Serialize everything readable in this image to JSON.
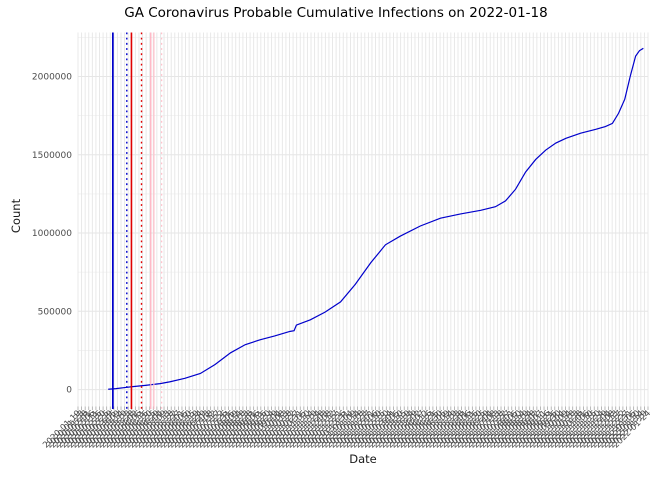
{
  "title": "GA Coronavirus Probable Cumulative Infections on 2022-01-18",
  "x_axis": {
    "label": "Date",
    "start": "2020-01-19",
    "end": "2022-01-24",
    "num_breaks": 160,
    "tick_label_format": "YYYY-MM-DD"
  },
  "y_axis": {
    "label": "Count",
    "tick_values": [
      0,
      500000,
      1000000,
      1500000,
      2000000
    ],
    "tick_labels": [
      "0",
      "500000",
      "1000000",
      "1500000",
      "2000000"
    ],
    "minor_values": [
      250000,
      750000,
      1250000,
      1750000,
      2250000
    ],
    "range": [
      -108000,
      2281000
    ]
  },
  "colors": {
    "background": "#ffffff",
    "grid_major": "#e6e6e6",
    "grid_minor": "#f2f2f2",
    "axis_tick": "#a6a6a6",
    "axis_text": "#4d4d4d",
    "axis_title": "#1a1a1a",
    "title_text": "#000000",
    "series_line": "#0000cc"
  },
  "chart_data": {
    "type": "line",
    "title": "GA Coronavirus Probable Cumulative Infections on 2022-01-18",
    "xlabel": "Date",
    "ylabel": "Count",
    "x_range": [
      "2020-01-19",
      "2022-01-24"
    ],
    "ylim": [
      -108000,
      2281000
    ],
    "grid": "on",
    "legend": "none",
    "series": [
      {
        "name": "probable-cumulative-infections",
        "color": "#0000cc",
        "points": [
          [
            "2020-02-27",
            2000
          ],
          [
            "2020-03-08",
            6000
          ],
          [
            "2020-03-28",
            18000
          ],
          [
            "2020-04-15",
            27000
          ],
          [
            "2020-05-04",
            38000
          ],
          [
            "2020-05-17",
            50000
          ],
          [
            "2020-06-05",
            72000
          ],
          [
            "2020-06-25",
            103000
          ],
          [
            "2020-07-14",
            160000
          ],
          [
            "2020-08-03",
            235000
          ],
          [
            "2020-08-22",
            287000
          ],
          [
            "2020-09-10",
            318000
          ],
          [
            "2020-09-29",
            343000
          ],
          [
            "2020-10-19",
            372000
          ],
          [
            "2020-10-24",
            376000
          ],
          [
            "2020-10-27",
            412000
          ],
          [
            "2020-11-14",
            446000
          ],
          [
            "2020-12-03",
            495000
          ],
          [
            "2020-12-23",
            560000
          ],
          [
            "2021-01-11",
            672000
          ],
          [
            "2021-01-31",
            810000
          ],
          [
            "2021-02-19",
            925000
          ],
          [
            "2021-03-10",
            980000
          ],
          [
            "2021-04-05",
            1045000
          ],
          [
            "2021-05-01",
            1095000
          ],
          [
            "2021-05-27",
            1122000
          ],
          [
            "2021-06-22",
            1145000
          ],
          [
            "2021-07-11",
            1168000
          ],
          [
            "2021-07-24",
            1205000
          ],
          [
            "2021-08-06",
            1280000
          ],
          [
            "2021-08-19",
            1390000
          ],
          [
            "2021-09-01",
            1470000
          ],
          [
            "2021-09-14",
            1530000
          ],
          [
            "2021-09-27",
            1575000
          ],
          [
            "2021-10-10",
            1605000
          ],
          [
            "2021-10-29",
            1638000
          ],
          [
            "2021-11-17",
            1662000
          ],
          [
            "2021-11-30",
            1680000
          ],
          [
            "2021-12-09",
            1700000
          ],
          [
            "2021-12-17",
            1765000
          ],
          [
            "2021-12-25",
            1855000
          ],
          [
            "2022-01-01",
            2000000
          ],
          [
            "2022-01-08",
            2130000
          ],
          [
            "2022-01-13",
            2165000
          ],
          [
            "2022-01-18",
            2180000
          ]
        ]
      }
    ],
    "vlines": [
      {
        "date": "2020-03-04",
        "color": "#0000cc",
        "style": "solid",
        "width": 1.7
      },
      {
        "date": "2020-03-22",
        "color": "#0000cc",
        "style": "dotted",
        "width": 1.4
      },
      {
        "date": "2020-03-28",
        "color": "#e00000",
        "style": "solid",
        "width": 1.6
      },
      {
        "date": "2020-04-10",
        "color": "#e00000",
        "style": "dotted",
        "width": 1.4
      },
      {
        "date": "2020-04-22",
        "color": "#ffaabb",
        "style": "solid",
        "width": 1.2
      },
      {
        "date": "2020-04-26",
        "color": "#ffc0cb",
        "style": "solid",
        "width": 1.2
      },
      {
        "date": "2020-05-06",
        "color": "#ffc0cb",
        "style": "dotted",
        "width": 1.2
      }
    ]
  }
}
